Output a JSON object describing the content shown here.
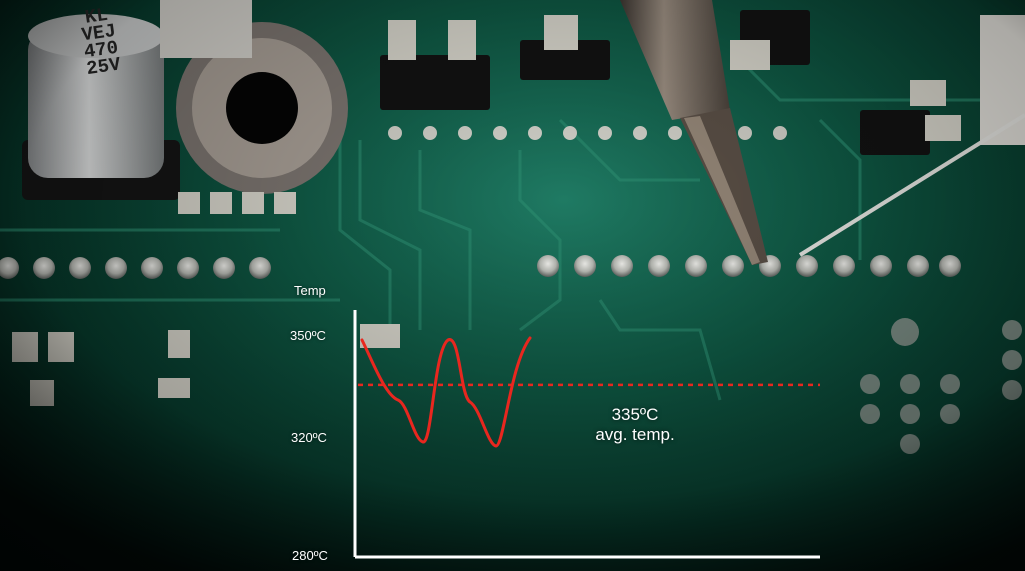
{
  "graphic": {
    "y_axis_title": "Temp",
    "tick_labels": [
      "350ºC",
      "320ºC",
      "280ºC"
    ],
    "avg_value": "335ºC",
    "avg_caption": "avg. temp.",
    "scale_min": 280,
    "scale_max": 350,
    "avg_temp": 335,
    "colors": {
      "curve": "#e8271f",
      "avg_line": "#e8271f",
      "axis": "#ffffff",
      "board": "#0f5a45"
    }
  },
  "photo": {
    "capacitor_label": [
      "KL",
      "VEJ",
      "470",
      "25V"
    ]
  }
}
